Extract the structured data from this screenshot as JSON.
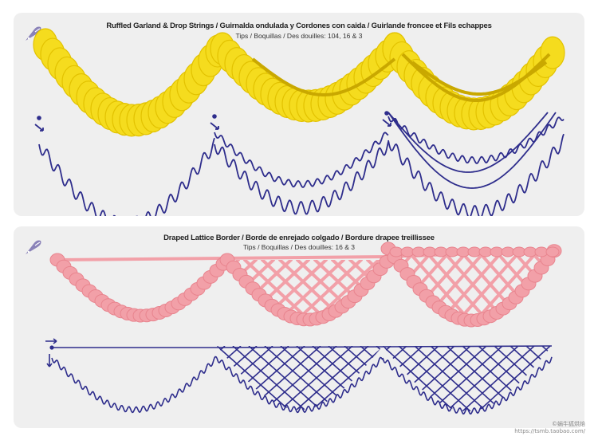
{
  "sections": [
    {
      "title": "Ruffled Garland & Drop Strings / Guirnalda ondulada  y Cordones con caida / Guirlande froncee et Fils echappes",
      "subtitle": "Tips / Boquillas / Des douilles: 104, 16 & 3"
    },
    {
      "title": "Draped Lattice Border / Borde de enrejado  colgado / Bordure drapee treillissee",
      "subtitle": "Tips / Boquillas / Des douilles: 16 & 3"
    }
  ],
  "footer": {
    "handle": "©蜗牛狐烘焙",
    "url": "https://tsmb.taobao.com/"
  },
  "colors": {
    "panel": "#efefef",
    "yellow_icing": "#f5dc1e",
    "pink_icing": "#f2a0a8",
    "guide_line": "#2e2d8c",
    "logo": "#8a82b8"
  }
}
